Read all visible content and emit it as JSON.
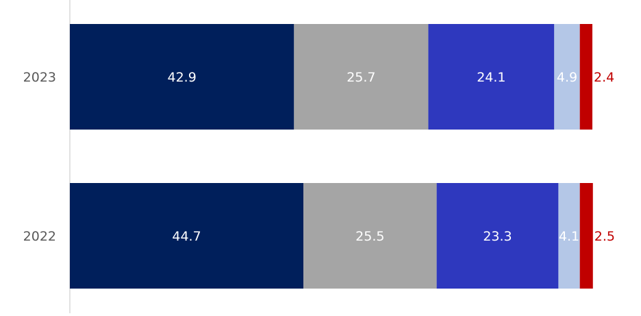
{
  "chart_data": {
    "type": "bar",
    "orientation": "horizontal",
    "stacked": true,
    "categories": [
      "2023",
      "2022"
    ],
    "series": [
      {
        "values": [
          42.9,
          44.7
        ],
        "color": "#001F5B",
        "label_color": "#FFFFFF"
      },
      {
        "values": [
          25.7,
          25.5
        ],
        "color": "#A5A5A5",
        "label_color": "#FFFFFF"
      },
      {
        "values": [
          24.1,
          23.3
        ],
        "color": "#2E38BE",
        "label_color": "#FFFFFF"
      },
      {
        "values": [
          4.9,
          4.1
        ],
        "color": "#B4C7E7",
        "label_color": "#FFFFFF"
      },
      {
        "values": [
          2.4,
          2.5
        ],
        "color": "#C00000",
        "label_color": "#C00000",
        "label_outside": true
      }
    ],
    "xlim": [
      0,
      100
    ],
    "grid": false,
    "legend": "none",
    "title": "",
    "xlabel": "",
    "ylabel": ""
  }
}
